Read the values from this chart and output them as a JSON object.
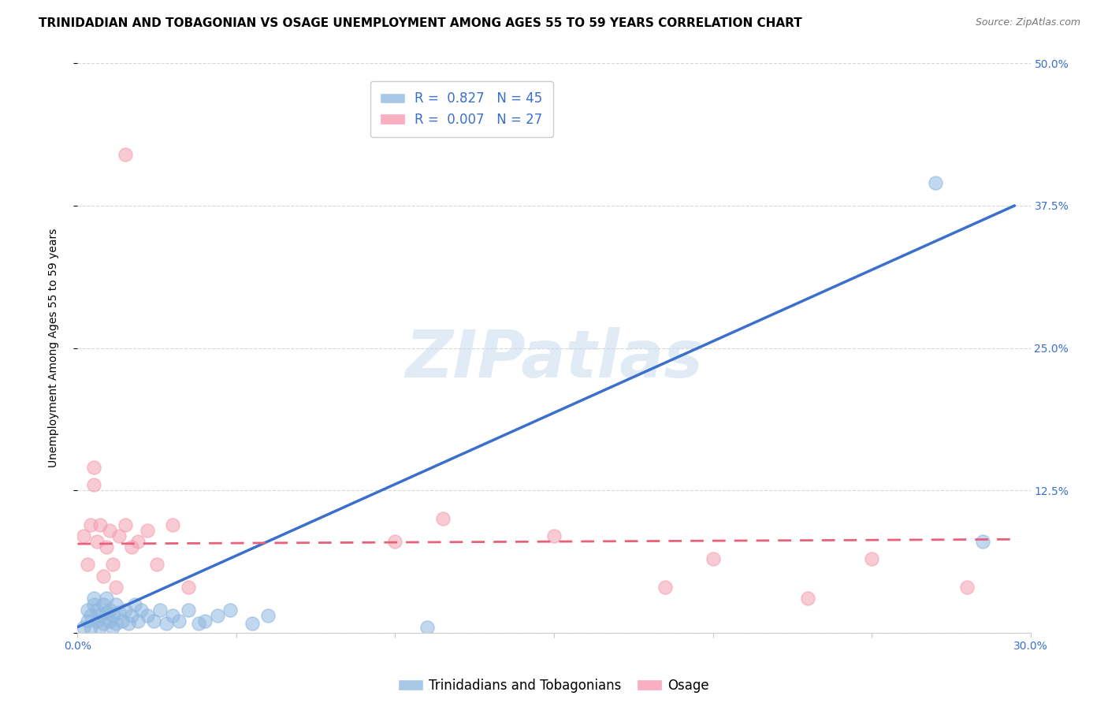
{
  "title": "TRINIDADIAN AND TOBAGONIAN VS OSAGE UNEMPLOYMENT AMONG AGES 55 TO 59 YEARS CORRELATION CHART",
  "source": "Source: ZipAtlas.com",
  "ylabel": "Unemployment Among Ages 55 to 59 years",
  "xlim": [
    0.0,
    0.3
  ],
  "ylim": [
    0.0,
    0.5
  ],
  "ytick_values": [
    0.0,
    0.125,
    0.25,
    0.375,
    0.5
  ],
  "xtick_values": [
    0.0,
    0.05,
    0.1,
    0.15,
    0.2,
    0.25,
    0.3
  ],
  "watermark": "ZIPatlas",
  "blue_color": "#90B8E0",
  "pink_color": "#F4A0B0",
  "blue_line_color": "#3B6FCC",
  "pink_line_color": "#E8607A",
  "R_blue": 0.827,
  "N_blue": 45,
  "R_pink": 0.007,
  "N_pink": 27,
  "legend_label_blue": "Trinidadians and Tobagonians",
  "legend_label_pink": "Osage",
  "blue_scatter_x": [
    0.002,
    0.003,
    0.003,
    0.004,
    0.004,
    0.005,
    0.005,
    0.006,
    0.006,
    0.007,
    0.007,
    0.008,
    0.008,
    0.009,
    0.009,
    0.01,
    0.01,
    0.011,
    0.011,
    0.012,
    0.012,
    0.013,
    0.014,
    0.015,
    0.016,
    0.017,
    0.018,
    0.019,
    0.02,
    0.022,
    0.024,
    0.026,
    0.028,
    0.03,
    0.032,
    0.035,
    0.038,
    0.04,
    0.044,
    0.048,
    0.055,
    0.06,
    0.11,
    0.27,
    0.285
  ],
  "blue_scatter_y": [
    0.005,
    0.01,
    0.02,
    0.005,
    0.015,
    0.025,
    0.03,
    0.01,
    0.02,
    0.005,
    0.015,
    0.025,
    0.008,
    0.018,
    0.03,
    0.01,
    0.02,
    0.005,
    0.015,
    0.025,
    0.008,
    0.018,
    0.01,
    0.02,
    0.008,
    0.015,
    0.025,
    0.01,
    0.02,
    0.015,
    0.01,
    0.02,
    0.008,
    0.015,
    0.01,
    0.02,
    0.008,
    0.01,
    0.015,
    0.02,
    0.008,
    0.015,
    0.005,
    0.395,
    0.08
  ],
  "pink_scatter_x": [
    0.002,
    0.003,
    0.004,
    0.005,
    0.006,
    0.007,
    0.008,
    0.009,
    0.01,
    0.011,
    0.012,
    0.013,
    0.015,
    0.017,
    0.019,
    0.022,
    0.025,
    0.03,
    0.035,
    0.1,
    0.115,
    0.15,
    0.185,
    0.2,
    0.23,
    0.25,
    0.28
  ],
  "pink_scatter_y": [
    0.085,
    0.06,
    0.095,
    0.13,
    0.08,
    0.095,
    0.05,
    0.075,
    0.09,
    0.06,
    0.04,
    0.085,
    0.095,
    0.075,
    0.08,
    0.09,
    0.06,
    0.095,
    0.04,
    0.08,
    0.1,
    0.085,
    0.04,
    0.065,
    0.03,
    0.065,
    0.04
  ],
  "pink_outlier_x": [
    0.015
  ],
  "pink_outlier_y": [
    0.42
  ],
  "pink_outlier2_x": [
    0.005
  ],
  "pink_outlier2_y": [
    0.145
  ],
  "blue_trendline_x": [
    0.0,
    0.295
  ],
  "blue_trendline_y": [
    0.005,
    0.375
  ],
  "pink_trendline_x": [
    0.0,
    0.295
  ],
  "pink_trendline_y": [
    0.078,
    0.082
  ],
  "grid_color": "#CCCCCC",
  "background_color": "#FFFFFF",
  "axis_color": "#3B6FCC",
  "title_fontsize": 11,
  "axis_label_fontsize": 10,
  "tick_fontsize": 10,
  "legend_fontsize": 12
}
